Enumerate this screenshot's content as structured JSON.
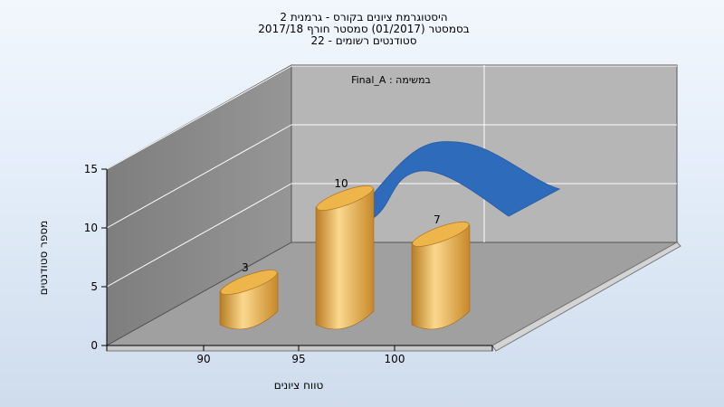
{
  "chart_data": {
    "type": "bar",
    "title_lines": [
      "היסטוגרמת ציונים בקורס - גרמנית 2",
      "בסמסטר  (01/2017)  סמסטר חורף  2017/18",
      "סטודנטים רשומים - 22"
    ],
    "categories": [
      "90",
      "95",
      "100"
    ],
    "values": [
      3,
      10,
      7
    ],
    "series": [
      {
        "name": "Final_A : במשימה",
        "values": [
          3,
          10,
          7
        ]
      }
    ],
    "curve": {
      "type": "line",
      "values": [
        9.2,
        13.7,
        10.3
      ]
    },
    "xlabel": "טווח ציונים",
    "ylabel": "מספר סטודנטים",
    "yticks": [
      0,
      5,
      10,
      15
    ],
    "ylim": [
      0,
      15
    ],
    "grid": true,
    "legend_position": "top",
    "colors": {
      "bar_light": "#fbd88e",
      "bar_mid": "#e3a848",
      "bar_dark": "#b97c22",
      "bar_top": "#eeb54a",
      "curve": "#2f6bbb",
      "back_wall": "#b6b6b6",
      "side_wall": "#8a8a8a",
      "floor": "#a0a0a0"
    }
  }
}
